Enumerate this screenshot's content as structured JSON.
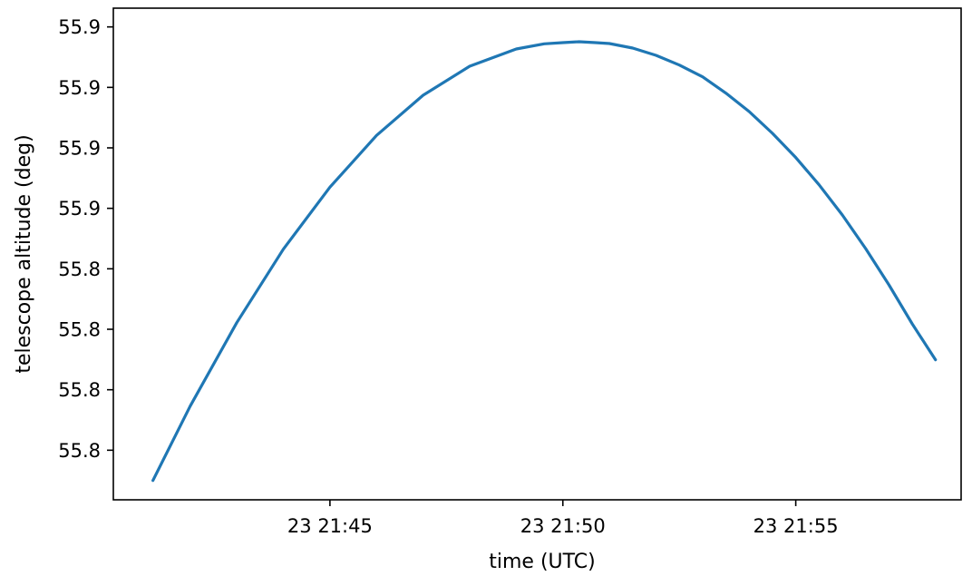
{
  "chart_data": {
    "type": "line",
    "title": "",
    "xlabel": "time (UTC)",
    "ylabel": "telescope altitude (deg)",
    "x_ticks": [
      {
        "value": 45,
        "label": "23 21:45"
      },
      {
        "value": 50,
        "label": "23 21:50"
      },
      {
        "value": 55,
        "label": "23 21:55"
      }
    ],
    "y_ticks": [
      {
        "value": 55.8,
        "label": "55.8"
      },
      {
        "value": 55.82,
        "label": "55.8"
      },
      {
        "value": 55.84,
        "label": "55.8"
      },
      {
        "value": 55.86,
        "label": "55.8"
      },
      {
        "value": 55.88,
        "label": "55.9"
      },
      {
        "value": 55.9,
        "label": "55.9"
      },
      {
        "value": 55.92,
        "label": "55.9"
      },
      {
        "value": 55.94,
        "label": "55.9"
      }
    ],
    "xlim": [
      40.35,
      58.55
    ],
    "ylim": [
      55.7836,
      55.9462
    ],
    "grid": false,
    "series": [
      {
        "color": "#1f77b4",
        "x": [
          41.2,
          42.0,
          43.0,
          44.0,
          45.0,
          46.0,
          47.0,
          48.0,
          49.0,
          49.6,
          50.0,
          50.35,
          50.7,
          51.0,
          51.5,
          52.0,
          52.5,
          53.0,
          53.5,
          54.0,
          54.5,
          55.0,
          55.5,
          56.0,
          56.5,
          57.0,
          57.5,
          58.0
        ],
        "y": [
          55.79,
          55.8146,
          55.8422,
          55.8665,
          55.887,
          55.9041,
          55.9174,
          55.927,
          55.9327,
          55.9344,
          55.9348,
          55.9351,
          55.9348,
          55.9345,
          55.933,
          55.9306,
          55.9274,
          55.9235,
          55.9181,
          55.912,
          55.9048,
          55.8968,
          55.8878,
          55.8778,
          55.8667,
          55.8547,
          55.8418,
          55.8299
        ]
      }
    ]
  }
}
